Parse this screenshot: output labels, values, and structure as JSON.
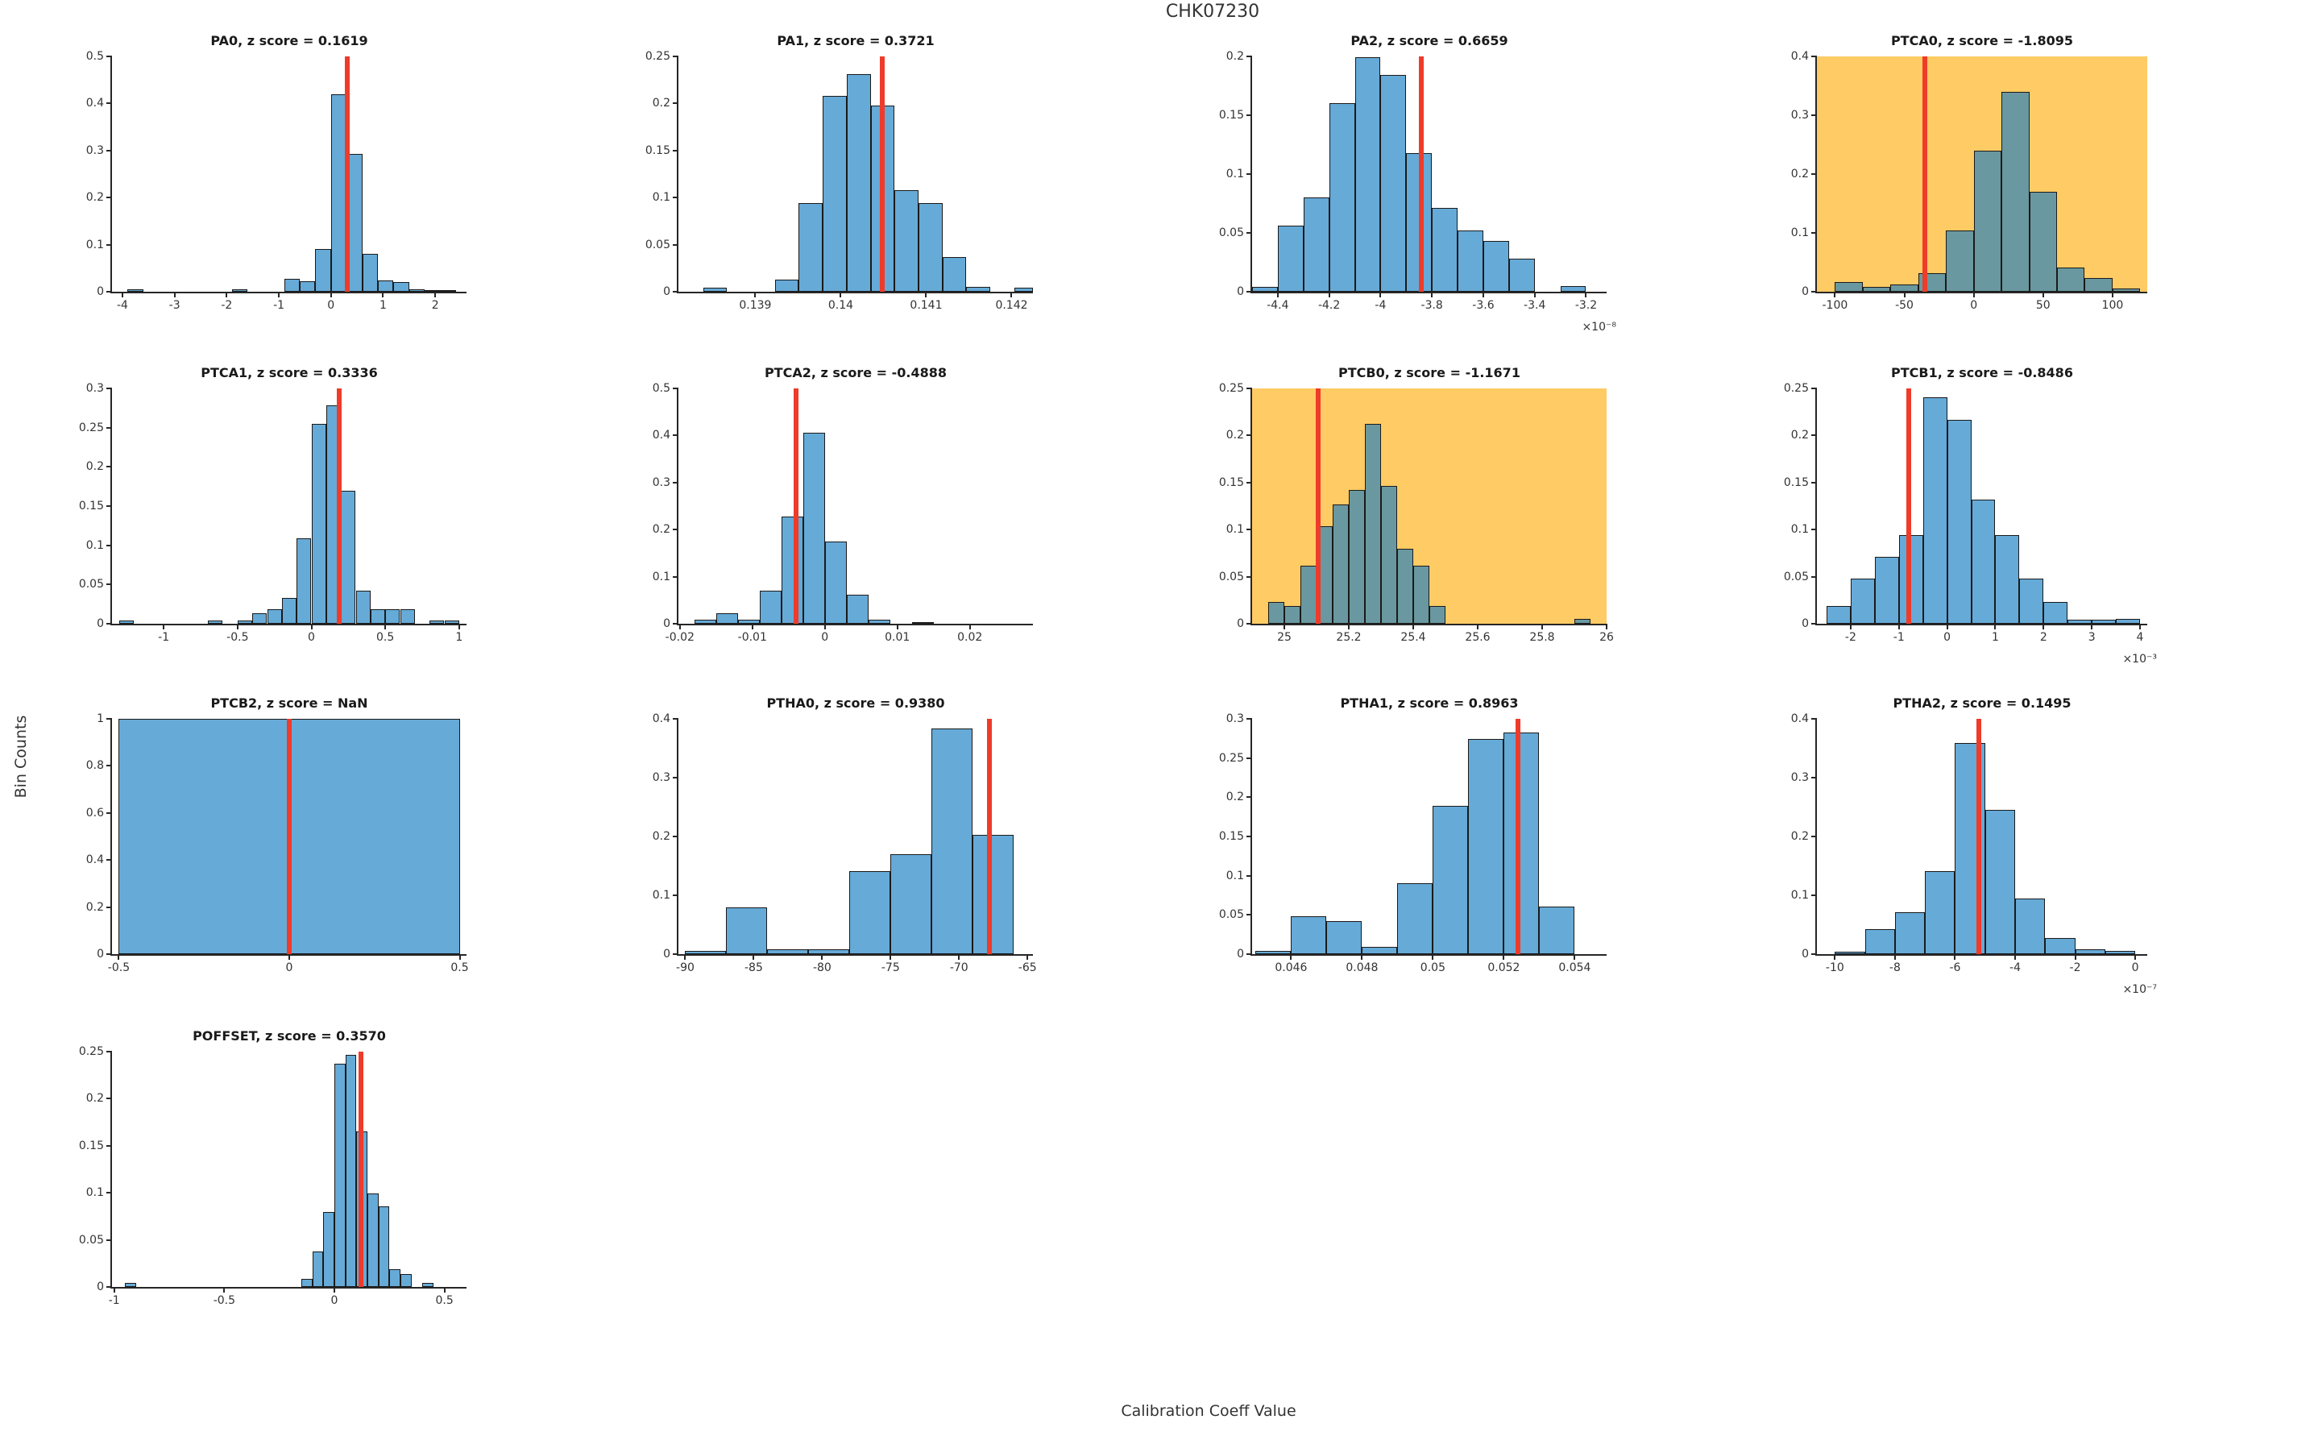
{
  "figure": {
    "title": "CHK07230",
    "ylabel": "Bin Counts",
    "xlabel": "Calibration Coeff Value"
  },
  "colors": {
    "bar_fill": "#66AAD7",
    "bar_fill_highlight": "#6A98A0",
    "bar_edge": "#1A1A1A",
    "highlight_bg": "#FFCB64",
    "marker_red": "#EE3B2A",
    "axis": "#262626"
  },
  "chart_data": [
    {
      "type": "bar",
      "name": "PA0",
      "title": "PA0, z score = 0.1619",
      "highlighted": false,
      "xlim": [
        -4.2,
        2.6
      ],
      "ylim": [
        0,
        0.5
      ],
      "yticks": [
        0,
        0.1,
        0.2,
        0.3,
        0.4,
        0.5
      ],
      "ytick_labels": [
        "0",
        "0.1",
        "0.2",
        "0.3",
        "0.4",
        "0.5"
      ],
      "xticks": [
        -4,
        -3,
        -2,
        -1,
        0,
        1,
        2
      ],
      "xtick_labels": [
        "-4",
        "-3",
        "-2",
        "-1",
        "0",
        "1",
        "2"
      ],
      "x_exponent": null,
      "marker_x": 0.31,
      "bars": [
        [
          -3.9,
          -3.6,
          0.005
        ],
        [
          -1.9,
          -1.6,
          0.005
        ],
        [
          -0.9,
          -0.6,
          0.028
        ],
        [
          -0.6,
          -0.3,
          0.022
        ],
        [
          -0.3,
          0.0,
          0.09
        ],
        [
          0.0,
          0.3,
          0.42
        ],
        [
          0.3,
          0.6,
          0.292
        ],
        [
          0.6,
          0.9,
          0.08
        ],
        [
          0.9,
          1.2,
          0.024
        ],
        [
          1.2,
          1.5,
          0.02
        ],
        [
          1.5,
          1.8,
          0.005
        ],
        [
          1.8,
          2.1,
          0.004
        ],
        [
          2.1,
          2.4,
          0.004
        ]
      ]
    },
    {
      "type": "bar",
      "name": "PA1",
      "title": "PA1, z score = 0.3721",
      "highlighted": false,
      "xlim": [
        0.1381,
        0.14225
      ],
      "ylim": [
        0,
        0.25
      ],
      "yticks": [
        0,
        0.05,
        0.1,
        0.15,
        0.2,
        0.25
      ],
      "ytick_labels": [
        "0",
        "0.05",
        "0.1",
        "0.15",
        "0.2",
        "0.25"
      ],
      "xticks": [
        0.139,
        0.14,
        0.141,
        0.142
      ],
      "xtick_labels": [
        "0.139",
        "0.14",
        "0.141",
        "0.142"
      ],
      "x_exponent": null,
      "marker_x": 0.14049,
      "bars": [
        [
          0.13839,
          0.13867,
          0.004
        ],
        [
          0.13923,
          0.13951,
          0.013
        ],
        [
          0.13951,
          0.13979,
          0.094
        ],
        [
          0.13979,
          0.14007,
          0.208
        ],
        [
          0.14007,
          0.14035,
          0.231
        ],
        [
          0.14035,
          0.14063,
          0.198
        ],
        [
          0.14063,
          0.14091,
          0.108
        ],
        [
          0.14091,
          0.14119,
          0.094
        ],
        [
          0.14119,
          0.14147,
          0.037
        ],
        [
          0.14147,
          0.14175,
          0.005
        ],
        [
          0.14203,
          0.14225,
          0.004
        ]
      ]
    },
    {
      "type": "bar",
      "name": "PA2",
      "title": "PA2, z score = 0.6659",
      "highlighted": false,
      "xlim": [
        -4.5,
        -3.12
      ],
      "ylim": [
        0,
        0.2
      ],
      "yticks": [
        0,
        0.05,
        0.1,
        0.15,
        0.2
      ],
      "ytick_labels": [
        "0",
        "0.05",
        "0.1",
        "0.15",
        "0.2"
      ],
      "xticks": [
        -4.4,
        -4.2,
        -4,
        -3.8,
        -3.6,
        -3.4,
        -3.2
      ],
      "xtick_labels": [
        "-4.4",
        "-4.2",
        "-4",
        "-3.8",
        "-3.6",
        "-3.4",
        "-3.2"
      ],
      "x_exponent": "×10⁻⁸",
      "marker_x": -3.84,
      "bars": [
        [
          -4.5,
          -4.4,
          0.004
        ],
        [
          -4.4,
          -4.3,
          0.056
        ],
        [
          -4.3,
          -4.2,
          0.08
        ],
        [
          -4.2,
          -4.1,
          0.16
        ],
        [
          -4.1,
          -4.0,
          0.199
        ],
        [
          -4.0,
          -3.9,
          0.184
        ],
        [
          -3.9,
          -3.8,
          0.118
        ],
        [
          -3.8,
          -3.7,
          0.071
        ],
        [
          -3.7,
          -3.6,
          0.052
        ],
        [
          -3.6,
          -3.5,
          0.043
        ],
        [
          -3.5,
          -3.4,
          0.028
        ],
        [
          -3.3,
          -3.2,
          0.005
        ]
      ]
    },
    {
      "type": "bar",
      "name": "PTCA0",
      "title": "PTCA0, z score = -1.8095",
      "highlighted": true,
      "xlim": [
        -113,
        125
      ],
      "ylim": [
        0,
        0.4
      ],
      "yticks": [
        0,
        0.1,
        0.2,
        0.3,
        0.4
      ],
      "ytick_labels": [
        "0",
        "0.1",
        "0.2",
        "0.3",
        "0.4"
      ],
      "xticks": [
        -100,
        -50,
        0,
        50,
        100
      ],
      "xtick_labels": [
        "-100",
        "-50",
        "0",
        "50",
        "100"
      ],
      "x_exponent": null,
      "marker_x": -35,
      "bars": [
        [
          -100,
          -80,
          0.017
        ],
        [
          -80,
          -60,
          0.008
        ],
        [
          -60,
          -40,
          0.013
        ],
        [
          -40,
          -20,
          0.032
        ],
        [
          -20,
          0,
          0.104
        ],
        [
          0,
          20,
          0.24
        ],
        [
          20,
          40,
          0.34
        ],
        [
          40,
          60,
          0.17
        ],
        [
          60,
          80,
          0.041
        ],
        [
          80,
          100,
          0.023
        ],
        [
          100,
          120,
          0.005
        ]
      ]
    },
    {
      "type": "bar",
      "name": "PTCA1",
      "title": "PTCA1, z score = 0.3336",
      "highlighted": false,
      "xlim": [
        -1.35,
        1.05
      ],
      "ylim": [
        0,
        0.3
      ],
      "yticks": [
        0,
        0.05,
        0.1,
        0.15,
        0.2,
        0.25,
        0.3
      ],
      "ytick_labels": [
        "0",
        "0.05",
        "0.1",
        "0.15",
        "0.2",
        "0.25",
        "0.3"
      ],
      "xticks": [
        -1,
        -0.5,
        0,
        0.5,
        1
      ],
      "xtick_labels": [
        "-1",
        "-0.5",
        "0",
        "0.5",
        "1"
      ],
      "x_exponent": null,
      "marker_x": 0.19,
      "bars": [
        [
          -1.3,
          -1.2,
          0.004
        ],
        [
          -0.7,
          -0.6,
          0.004
        ],
        [
          -0.5,
          -0.4,
          0.004
        ],
        [
          -0.4,
          -0.3,
          0.013
        ],
        [
          -0.3,
          -0.2,
          0.018
        ],
        [
          -0.2,
          -0.1,
          0.033
        ],
        [
          -0.1,
          0,
          0.109
        ],
        [
          0,
          0.1,
          0.255
        ],
        [
          0.1,
          0.2,
          0.278
        ],
        [
          0.2,
          0.3,
          0.17
        ],
        [
          0.3,
          0.4,
          0.042
        ],
        [
          0.4,
          0.5,
          0.018
        ],
        [
          0.5,
          0.6,
          0.018
        ],
        [
          0.6,
          0.7,
          0.018
        ],
        [
          0.8,
          0.9,
          0.004
        ],
        [
          0.9,
          1.0,
          0.004
        ]
      ]
    },
    {
      "type": "bar",
      "name": "PTCA2",
      "title": "PTCA2, z score = -0.4888",
      "highlighted": false,
      "xlim": [
        -0.0202,
        0.0287
      ],
      "ylim": [
        0,
        0.5
      ],
      "yticks": [
        0,
        0.1,
        0.2,
        0.3,
        0.4,
        0.5
      ],
      "ytick_labels": [
        "0",
        "0.1",
        "0.2",
        "0.3",
        "0.4",
        "0.5"
      ],
      "xticks": [
        -0.02,
        -0.01,
        0,
        0.01,
        0.02
      ],
      "xtick_labels": [
        "-0.02",
        "-0.01",
        "0",
        "0.01",
        "0.02"
      ],
      "x_exponent": null,
      "marker_x": -0.004,
      "bars": [
        [
          -0.018,
          -0.015,
          0.008
        ],
        [
          -0.015,
          -0.012,
          0.022
        ],
        [
          -0.012,
          -0.009,
          0.008
        ],
        [
          -0.009,
          -0.006,
          0.07
        ],
        [
          -0.006,
          -0.003,
          0.227
        ],
        [
          -0.003,
          0,
          0.405
        ],
        [
          0,
          0.003,
          0.174
        ],
        [
          0.003,
          0.006,
          0.062
        ],
        [
          0.006,
          0.009,
          0.009
        ],
        [
          0.012,
          0.015,
          0.004
        ]
      ]
    },
    {
      "type": "bar",
      "name": "PTCB0",
      "title": "PTCB0, z score = -1.1671",
      "highlighted": true,
      "xlim": [
        24.9,
        26
      ],
      "ylim": [
        0,
        0.25
      ],
      "yticks": [
        0,
        0.05,
        0.1,
        0.15,
        0.2,
        0.25
      ],
      "ytick_labels": [
        "0",
        "0.05",
        "0.1",
        "0.15",
        "0.2",
        "0.25"
      ],
      "xticks": [
        25,
        25.2,
        25.4,
        25.6,
        25.8,
        26
      ],
      "xtick_labels": [
        "25",
        "25.2",
        "25.4",
        "25.6",
        "25.8",
        "26"
      ],
      "x_exponent": null,
      "marker_x": 25.105,
      "bars": [
        [
          24.95,
          25.0,
          0.023
        ],
        [
          25.0,
          25.05,
          0.019
        ],
        [
          25.05,
          25.1,
          0.062
        ],
        [
          25.1,
          25.15,
          0.104
        ],
        [
          25.15,
          25.2,
          0.127
        ],
        [
          25.2,
          25.25,
          0.142
        ],
        [
          25.25,
          25.3,
          0.212
        ],
        [
          25.3,
          25.35,
          0.146
        ],
        [
          25.35,
          25.4,
          0.08
        ],
        [
          25.4,
          25.45,
          0.062
        ],
        [
          25.45,
          25.5,
          0.019
        ],
        [
          25.9,
          25.95,
          0.005
        ]
      ]
    },
    {
      "type": "bar",
      "name": "PTCB1",
      "title": "PTCB1, z score = -0.8486",
      "highlighted": false,
      "xlim": [
        -2.7,
        4.15
      ],
      "ylim": [
        0,
        0.25
      ],
      "yticks": [
        0,
        0.05,
        0.1,
        0.15,
        0.2,
        0.25
      ],
      "ytick_labels": [
        "0",
        "0.05",
        "0.1",
        "0.15",
        "0.2",
        "0.25"
      ],
      "xticks": [
        -2,
        -1,
        0,
        1,
        2,
        3,
        4
      ],
      "xtick_labels": [
        "-2",
        "-1",
        "0",
        "1",
        "2",
        "3",
        "4"
      ],
      "x_exponent": "×10⁻³",
      "marker_x": -0.8,
      "bars": [
        [
          -2.5,
          -2.0,
          0.019
        ],
        [
          -2.0,
          -1.5,
          0.048
        ],
        [
          -1.5,
          -1.0,
          0.071
        ],
        [
          -1.0,
          -0.5,
          0.094
        ],
        [
          -0.5,
          0,
          0.241
        ],
        [
          0,
          0.5,
          0.217
        ],
        [
          0.5,
          1.0,
          0.132
        ],
        [
          1.0,
          1.5,
          0.094
        ],
        [
          1.5,
          2.0,
          0.048
        ],
        [
          2.0,
          2.5,
          0.023
        ],
        [
          2.5,
          3.0,
          0.004
        ],
        [
          3.0,
          3.5,
          0.004
        ],
        [
          3.5,
          4.0,
          0.005
        ]
      ]
    },
    {
      "type": "bar",
      "name": "PTCB2",
      "title": "PTCB2, z score = NaN",
      "highlighted": false,
      "xlim": [
        -0.52,
        0.52
      ],
      "ylim": [
        0,
        1
      ],
      "yticks": [
        0,
        0.2,
        0.4,
        0.6,
        0.8,
        1
      ],
      "ytick_labels": [
        "0",
        "0.2",
        "0.4",
        "0.6",
        "0.8",
        "1"
      ],
      "xticks": [
        -0.5,
        0,
        0.5
      ],
      "xtick_labels": [
        "-0.5",
        "0",
        "0.5"
      ],
      "x_exponent": null,
      "marker_x": 0,
      "bars": [
        [
          -0.5,
          0.5,
          1.0
        ]
      ]
    },
    {
      "type": "bar",
      "name": "PTHA0",
      "title": "PTHA0, z score = 0.9380",
      "highlighted": false,
      "xlim": [
        -90.5,
        -64.6
      ],
      "ylim": [
        0,
        0.4
      ],
      "yticks": [
        0,
        0.1,
        0.2,
        0.3,
        0.4
      ],
      "ytick_labels": [
        "0",
        "0.1",
        "0.2",
        "0.3",
        "0.4"
      ],
      "xticks": [
        -90,
        -85,
        -80,
        -75,
        -70,
        -65
      ],
      "xtick_labels": [
        "-90",
        "-85",
        "-80",
        "-75",
        "-70",
        "-65"
      ],
      "x_exponent": null,
      "marker_x": -67.8,
      "bars": [
        [
          -90,
          -87,
          0.005
        ],
        [
          -87,
          -84,
          0.08
        ],
        [
          -84,
          -81,
          0.008
        ],
        [
          -81,
          -78,
          0.008
        ],
        [
          -78,
          -75,
          0.141
        ],
        [
          -75,
          -72,
          0.17
        ],
        [
          -72,
          -69,
          0.383
        ],
        [
          -69,
          -66,
          0.203
        ]
      ]
    },
    {
      "type": "bar",
      "name": "PTHA1",
      "title": "PTHA1, z score = 0.8963",
      "highlighted": false,
      "xlim": [
        0.0449,
        0.0549
      ],
      "ylim": [
        0,
        0.3
      ],
      "yticks": [
        0,
        0.05,
        0.1,
        0.15,
        0.2,
        0.25,
        0.3
      ],
      "ytick_labels": [
        "0",
        "0.05",
        "0.1",
        "0.15",
        "0.2",
        "0.25",
        "0.3"
      ],
      "xticks": [
        0.046,
        0.048,
        0.05,
        0.052,
        0.054
      ],
      "xtick_labels": [
        "0.046",
        "0.048",
        "0.05",
        "0.052",
        "0.054"
      ],
      "x_exponent": null,
      "marker_x": 0.0524,
      "bars": [
        [
          0.045,
          0.046,
          0.004
        ],
        [
          0.046,
          0.047,
          0.048
        ],
        [
          0.047,
          0.048,
          0.042
        ],
        [
          0.048,
          0.049,
          0.009
        ],
        [
          0.049,
          0.05,
          0.09
        ],
        [
          0.05,
          0.051,
          0.189
        ],
        [
          0.051,
          0.052,
          0.274
        ],
        [
          0.052,
          0.053,
          0.283
        ],
        [
          0.053,
          0.054,
          0.061
        ]
      ]
    },
    {
      "type": "bar",
      "name": "PTHA2",
      "title": "PTHA2, z score = 0.1495",
      "highlighted": false,
      "xlim": [
        -10.6,
        0.4
      ],
      "ylim": [
        0,
        0.4
      ],
      "yticks": [
        0,
        0.1,
        0.2,
        0.3,
        0.4
      ],
      "ytick_labels": [
        "0",
        "0.1",
        "0.2",
        "0.3",
        "0.4"
      ],
      "xticks": [
        -10,
        -8,
        -6,
        -4,
        -2,
        0
      ],
      "xtick_labels": [
        "-10",
        "-8",
        "-6",
        "-4",
        "-2",
        "0"
      ],
      "x_exponent": "×10⁻⁷",
      "marker_x": -5.2,
      "bars": [
        [
          -10,
          -9,
          0.004
        ],
        [
          -9,
          -8,
          0.042
        ],
        [
          -8,
          -7,
          0.071
        ],
        [
          -7,
          -6,
          0.141
        ],
        [
          -6,
          -5,
          0.359
        ],
        [
          -5,
          -4,
          0.245
        ],
        [
          -4,
          -3,
          0.095
        ],
        [
          -3,
          -2,
          0.028
        ],
        [
          -2,
          -1,
          0.008
        ],
        [
          -1,
          0,
          0.005
        ]
      ]
    },
    {
      "type": "bar",
      "name": "POFFSET",
      "title": "POFFSET, z score = 0.3570",
      "highlighted": false,
      "xlim": [
        -1.01,
        0.6
      ],
      "ylim": [
        0,
        0.25
      ],
      "yticks": [
        0,
        0.05,
        0.1,
        0.15,
        0.2,
        0.25
      ],
      "ytick_labels": [
        "0",
        "0.05",
        "0.1",
        "0.15",
        "0.2",
        "0.25"
      ],
      "xticks": [
        -1,
        -0.5,
        0,
        0.5
      ],
      "xtick_labels": [
        "-1",
        "-0.5",
        "0",
        "0.5"
      ],
      "x_exponent": null,
      "marker_x": 0.12,
      "bars": [
        [
          -0.95,
          -0.9,
          0.004
        ],
        [
          -0.15,
          -0.1,
          0.009
        ],
        [
          -0.1,
          -0.05,
          0.038
        ],
        [
          -0.05,
          0,
          0.08
        ],
        [
          0,
          0.05,
          0.237
        ],
        [
          0.05,
          0.1,
          0.247
        ],
        [
          0.1,
          0.15,
          0.165
        ],
        [
          0.15,
          0.2,
          0.099
        ],
        [
          0.2,
          0.25,
          0.086
        ],
        [
          0.25,
          0.3,
          0.019
        ],
        [
          0.3,
          0.35,
          0.014
        ],
        [
          0.4,
          0.45,
          0.004
        ]
      ]
    }
  ]
}
